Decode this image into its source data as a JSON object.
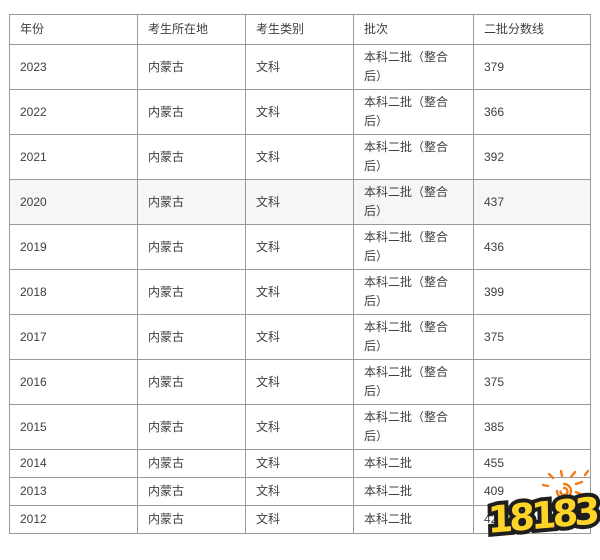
{
  "table": {
    "columns": [
      "年份",
      "考生所在地",
      "考生类别",
      "批次",
      "二批分数线"
    ],
    "rows": [
      {
        "year": "2023",
        "location": "内蒙古",
        "category": "文科",
        "batch": "本科二批（整合后）",
        "score": "379",
        "highlight": false
      },
      {
        "year": "2022",
        "location": "内蒙古",
        "category": "文科",
        "batch": "本科二批（整合后）",
        "score": "366",
        "highlight": false
      },
      {
        "year": "2021",
        "location": "内蒙古",
        "category": "文科",
        "batch": "本科二批（整合后）",
        "score": "392",
        "highlight": false
      },
      {
        "year": "2020",
        "location": "内蒙古",
        "category": "文科",
        "batch": "本科二批（整合后）",
        "score": "437",
        "highlight": true
      },
      {
        "year": "2019",
        "location": "内蒙古",
        "category": "文科",
        "batch": "本科二批（整合后）",
        "score": "436",
        "highlight": false
      },
      {
        "year": "2018",
        "location": "内蒙古",
        "category": "文科",
        "batch": "本科二批（整合后）",
        "score": "399",
        "highlight": false
      },
      {
        "year": "2017",
        "location": "内蒙古",
        "category": "文科",
        "batch": "本科二批（整合后）",
        "score": "375",
        "highlight": false
      },
      {
        "year": "2016",
        "location": "内蒙古",
        "category": "文科",
        "batch": "本科二批（整合后）",
        "score": "375",
        "highlight": false
      },
      {
        "year": "2015",
        "location": "内蒙古",
        "category": "文科",
        "batch": "本科二批（整合后）",
        "score": "385",
        "highlight": false
      },
      {
        "year": "2014",
        "location": "内蒙古",
        "category": "文科",
        "batch": "本科二批",
        "score": "455",
        "highlight": false
      },
      {
        "year": "2013",
        "location": "内蒙古",
        "category": "文科",
        "batch": "本科二批",
        "score": "409",
        "highlight": false
      },
      {
        "year": "2012",
        "location": "内蒙古",
        "category": "文科",
        "batch": "本科二批",
        "score": "42",
        "highlight": false
      }
    ]
  },
  "watermark": {
    "text": "18183",
    "fill_color": "#ffd428",
    "outline_color": "#1e1e1e",
    "sun_color": "#ee7d18"
  },
  "colors": {
    "border": "#999999",
    "text": "#404040",
    "highlight_row_bg": "#f6f6f6",
    "page_bg": "#ffffff"
  }
}
